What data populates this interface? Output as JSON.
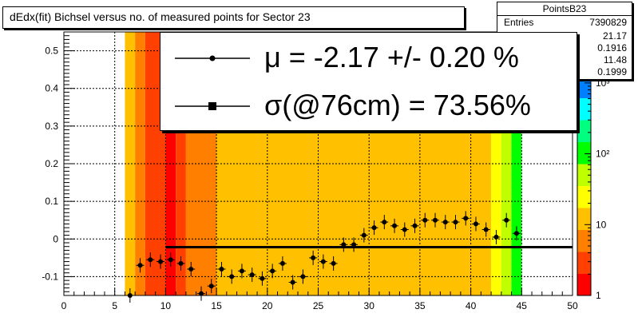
{
  "title": "dEdx(fit) Bichsel versus no. of measured points for Sector 23",
  "stats": {
    "name": "PointsB23",
    "entries_label": "Entries",
    "entries_value": "7390829",
    "values": [
      "21.17",
      "0.1916",
      "11.48",
      "0.1999"
    ]
  },
  "legend": {
    "mu_text": "μ  = -2.17 +/-  0.20 %",
    "sigma_text": "σ(@76cm) = 73.56%"
  },
  "colors": {
    "palette": [
      "#ff0000",
      "#ff4000",
      "#ff8000",
      "#ffc000",
      "#ffff00",
      "#c0ff00",
      "#00ff00",
      "#00ff80",
      "#00ffff",
      "#0080ff",
      "#0000ff",
      "#8000ff"
    ],
    "points": "#000000",
    "fit_line": "#000000"
  },
  "chart_data": {
    "type": "heatmap",
    "title": "dEdx(fit) Bichsel versus no. of measured points for Sector 23",
    "xlabel": "",
    "ylabel": "",
    "xlim": [
      0,
      50
    ],
    "ylim": [
      -0.15,
      0.55
    ],
    "x_ticks": [
      "0",
      "5",
      "10",
      "15",
      "20",
      "25",
      "30",
      "35",
      "40",
      "45",
      "50"
    ],
    "y_ticks": [
      "-0.1",
      "0",
      "0.1",
      "0.2",
      "0.3",
      "0.4",
      "0.5"
    ],
    "grid": true,
    "color_scale": "log",
    "color_axis_ticks": [
      "1",
      "10",
      "10²",
      "10³"
    ],
    "heatmap_columns": [
      {
        "x0": 6.0,
        "x1": 7.0,
        "level": 3
      },
      {
        "x0": 7.0,
        "x1": 8.0,
        "level": 2
      },
      {
        "x0": 8.0,
        "x1": 10.0,
        "level": 1
      },
      {
        "x0": 10.0,
        "x1": 11.0,
        "level": 0
      },
      {
        "x0": 11.0,
        "x1": 12.0,
        "level": 1
      },
      {
        "x0": 12.0,
        "x1": 15.0,
        "level": 2
      },
      {
        "x0": 15.0,
        "x1": 25.0,
        "level": 3
      },
      {
        "x0": 25.0,
        "x1": 42.0,
        "level": 3
      },
      {
        "x0": 42.0,
        "x1": 43.0,
        "level": 4
      },
      {
        "x0": 43.0,
        "x1": 44.0,
        "level": 5
      },
      {
        "x0": 44.0,
        "x1": 45.0,
        "level": 6
      }
    ],
    "series": [
      {
        "type": "scatter",
        "x": [
          6.5,
          7.5,
          8.5,
          9.5,
          10.5,
          11.5,
          12.5,
          13.5,
          14.5,
          15.5,
          16.5,
          17.5,
          18.5,
          19.5,
          20.5,
          21.5,
          22.5,
          23.5,
          24.5,
          25.5,
          26.5,
          27.5,
          28.5,
          29.5,
          30.5,
          31.5,
          32.5,
          33.5,
          34.5,
          35.5,
          36.5,
          37.5,
          38.5,
          39.5,
          40.5,
          41.5,
          42.5,
          43.5,
          44.5
        ],
        "y": [
          -0.15,
          -0.07,
          -0.055,
          -0.06,
          -0.055,
          -0.065,
          -0.08,
          -0.145,
          -0.125,
          -0.08,
          -0.1,
          -0.085,
          -0.095,
          -0.105,
          -0.085,
          -0.065,
          -0.115,
          -0.1,
          -0.05,
          -0.06,
          -0.065,
          -0.015,
          -0.015,
          0.01,
          0.03,
          0.045,
          0.035,
          0.025,
          0.035,
          0.05,
          0.05,
          0.045,
          0.045,
          0.055,
          0.04,
          0.025,
          0.005,
          0.05,
          0.015
        ]
      },
      {
        "type": "line",
        "x": [
          10,
          50
        ],
        "y": [
          -0.0217,
          -0.0217
        ]
      }
    ]
  }
}
